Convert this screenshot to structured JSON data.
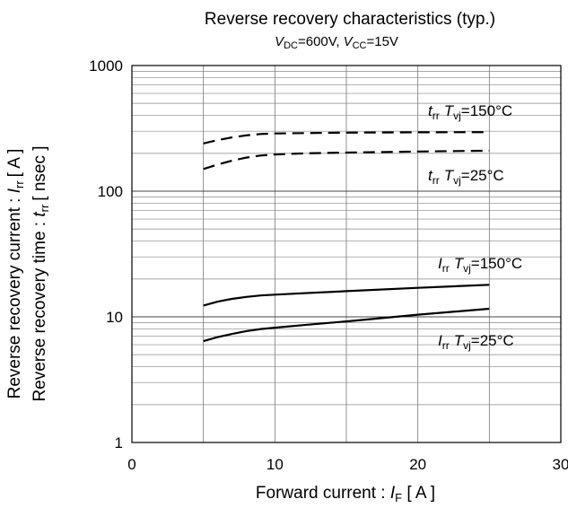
{
  "chart_data": {
    "type": "line",
    "title": "Reverse recovery characteristics (typ.)",
    "subtitle": {
      "v_dc_sym": "V",
      "v_dc_sub": "DC",
      "v_dc_val": "=600V,",
      "v_cc_sym": "V",
      "v_cc_sub": "CC",
      "v_cc_val": "=15V"
    },
    "xlabel": {
      "text": "Forward current : ",
      "sym": "I",
      "sub": "F",
      "unit": " [ A ]"
    },
    "ylabel_1": {
      "text": "Reverse recovery current : ",
      "sym": "I",
      "sub": "rr",
      "unit": "[ A ]"
    },
    "ylabel_2": {
      "text": "Reverse recovery time : ",
      "sym": "t",
      "sub": "rr",
      "unit": "[ nsec ]"
    },
    "xlim": [
      0,
      30
    ],
    "ylim": [
      1,
      1000
    ],
    "y_scale": "log",
    "x_ticks": [
      "0",
      "10",
      "20",
      "30"
    ],
    "y_ticks": [
      "1",
      "10",
      "100",
      "1000"
    ],
    "grid": true,
    "series": [
      {
        "sym": "t",
        "sub": "rr",
        "sym2": "T",
        "sub2": "vj",
        "cond": "=150°C",
        "style": "dashed",
        "x": [
          5,
          6,
          7,
          8,
          9,
          10,
          12,
          15,
          20,
          25
        ],
        "y": [
          240,
          255,
          268,
          278,
          285,
          288,
          290,
          292,
          294,
          295
        ]
      },
      {
        "sym": "t",
        "sub": "rr",
        "sym2": "T",
        "sub2": "vj",
        "cond": "=25°C",
        "style": "dashed",
        "x": [
          5,
          6,
          7,
          8,
          9,
          10,
          12,
          15,
          20,
          25
        ],
        "y": [
          150,
          163,
          175,
          185,
          192,
          196,
          200,
          203,
          207,
          210
        ]
      },
      {
        "sym": "I",
        "sub": "rr",
        "sym2": "T",
        "sub2": "vj",
        "cond": "=150°C",
        "style": "solid",
        "x": [
          5,
          6,
          7,
          8,
          9,
          10,
          12,
          15,
          20,
          25
        ],
        "y": [
          12.3,
          13.2,
          13.9,
          14.4,
          14.8,
          15.0,
          15.4,
          16.0,
          17.0,
          18.0
        ]
      },
      {
        "sym": "I",
        "sub": "rr",
        "sym2": "T",
        "sub2": "vj",
        "cond": "=25°C",
        "style": "solid",
        "x": [
          5,
          6,
          7,
          8,
          9,
          10,
          12,
          15,
          20,
          25
        ],
        "y": [
          6.4,
          6.9,
          7.3,
          7.7,
          8.0,
          8.2,
          8.6,
          9.2,
          10.4,
          11.6
        ]
      }
    ]
  }
}
